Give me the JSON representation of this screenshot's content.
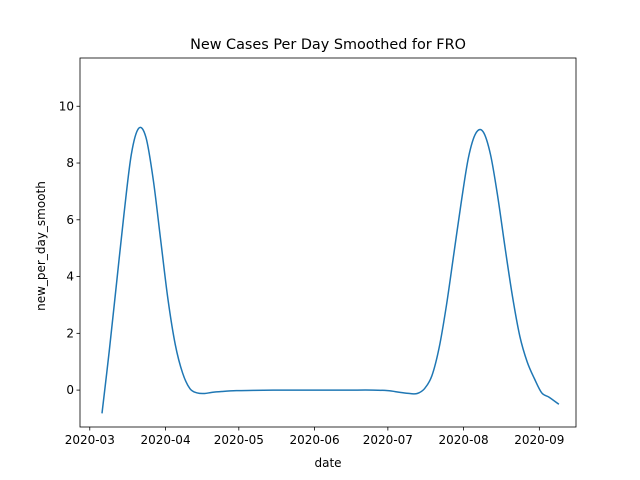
{
  "chart_data": {
    "type": "line",
    "title": "New Cases Per Day Smoothed for FRO",
    "xlabel": "date",
    "ylabel": "new_per_day_smooth",
    "x_is_date": true,
    "xlim": [
      "2020-02-26",
      "2020-09-16"
    ],
    "ylim": [
      -1.3,
      11.7
    ],
    "x_ticks": [
      "2020-03-01",
      "2020-04-01",
      "2020-05-01",
      "2020-06-01",
      "2020-07-01",
      "2020-08-01",
      "2020-09-01"
    ],
    "x_tick_labels": [
      "2020-03",
      "2020-04",
      "2020-05",
      "2020-06",
      "2020-07",
      "2020-08",
      "2020-09"
    ],
    "y_ticks": [
      0,
      2,
      4,
      6,
      8,
      10
    ],
    "y_tick_labels": [
      "0",
      "2",
      "4",
      "6",
      "8",
      "10"
    ],
    "grid": false,
    "legend": "none",
    "line_color": "#1f77b4",
    "series": [
      {
        "x": [
          "2020-03-06",
          "2020-03-09",
          "2020-03-12",
          "2020-03-15",
          "2020-03-18",
          "2020-03-21",
          "2020-03-24",
          "2020-03-27",
          "2020-03-30",
          "2020-04-02",
          "2020-04-05",
          "2020-04-08",
          "2020-04-11",
          "2020-04-14",
          "2020-04-17",
          "2020-04-20",
          "2020-04-24",
          "2020-04-30",
          "2020-05-07",
          "2020-05-15",
          "2020-05-25",
          "2020-06-05",
          "2020-06-15",
          "2020-06-25",
          "2020-07-01",
          "2020-07-06",
          "2020-07-10",
          "2020-07-13",
          "2020-07-16",
          "2020-07-19",
          "2020-07-22",
          "2020-07-25",
          "2020-07-28",
          "2020-07-31",
          "2020-08-03",
          "2020-08-06",
          "2020-08-09",
          "2020-08-12",
          "2020-08-15",
          "2020-08-18",
          "2020-08-21",
          "2020-08-24",
          "2020-08-27",
          "2020-08-30",
          "2020-09-02",
          "2020-09-05",
          "2020-09-09"
        ],
        "y": [
          -0.82,
          1.4,
          3.8,
          6.2,
          8.3,
          9.22,
          8.9,
          7.4,
          5.3,
          3.2,
          1.6,
          0.6,
          0.05,
          -0.1,
          -0.12,
          -0.08,
          -0.05,
          -0.02,
          -0.01,
          0,
          0,
          0,
          0,
          0,
          -0.02,
          -0.08,
          -0.12,
          -0.12,
          0.05,
          0.5,
          1.5,
          3.0,
          4.8,
          6.6,
          8.2,
          9.05,
          9.1,
          8.3,
          6.8,
          5.0,
          3.3,
          1.9,
          1.0,
          0.4,
          -0.1,
          -0.25,
          -0.5
        ]
      }
    ]
  }
}
